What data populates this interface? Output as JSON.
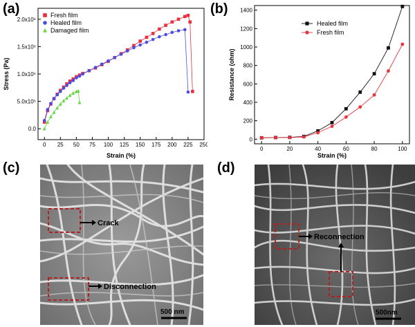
{
  "panels": {
    "a": "(a)",
    "b": "(b)",
    "c": "(c)",
    "d": "(d)"
  },
  "chart_data": [
    {
      "type": "scatter",
      "panel": "(a)",
      "xlabel": "Strain (%)",
      "ylabel": "Stress (Pa)",
      "xlim": [
        -10,
        250
      ],
      "ylim": [
        -0.2,
        2.2
      ],
      "xticks": [
        0,
        25,
        50,
        75,
        100,
        125,
        150,
        175,
        200,
        225,
        250
      ],
      "yticks": [
        0.0,
        0.5,
        1.0,
        1.5,
        2.0
      ],
      "ytick_labels": [
        "0.0",
        "5.0x10⁵",
        "1.0x10⁶",
        "1.5x10⁶",
        "2.0x10⁶"
      ],
      "legend_position": "top-left",
      "series": [
        {
          "name": "Fresh film",
          "color": "#e8313c",
          "marker": "square",
          "points": [
            [
              0,
              0.12
            ],
            [
              5,
              0.33
            ],
            [
              10,
              0.45
            ],
            [
              15,
              0.55
            ],
            [
              20,
              0.63
            ],
            [
              25,
              0.7
            ],
            [
              30,
              0.76
            ],
            [
              35,
              0.82
            ],
            [
              40,
              0.87
            ],
            [
              45,
              0.91
            ],
            [
              50,
              0.95
            ],
            [
              55,
              0.98
            ],
            [
              60,
              1.01
            ],
            [
              70,
              1.06
            ],
            [
              80,
              1.11
            ],
            [
              90,
              1.17
            ],
            [
              100,
              1.23
            ],
            [
              110,
              1.3
            ],
            [
              120,
              1.37
            ],
            [
              130,
              1.44
            ],
            [
              140,
              1.52
            ],
            [
              150,
              1.6
            ],
            [
              160,
              1.67
            ],
            [
              170,
              1.74
            ],
            [
              180,
              1.82
            ],
            [
              190,
              1.89
            ],
            [
              200,
              1.95
            ],
            [
              210,
              2.0
            ],
            [
              220,
              2.05
            ],
            [
              225,
              2.07
            ],
            [
              228,
              1.95
            ],
            [
              232,
              0.68
            ]
          ]
        },
        {
          "name": "Healed film",
          "color": "#4a4de0",
          "marker": "circle",
          "points": [
            [
              0,
              0.15
            ],
            [
              5,
              0.35
            ],
            [
              10,
              0.46
            ],
            [
              15,
              0.55
            ],
            [
              20,
              0.62
            ],
            [
              25,
              0.68
            ],
            [
              30,
              0.74
            ],
            [
              35,
              0.79
            ],
            [
              40,
              0.84
            ],
            [
              45,
              0.88
            ],
            [
              50,
              0.93
            ],
            [
              55,
              0.96
            ],
            [
              60,
              1.0
            ],
            [
              70,
              1.06
            ],
            [
              80,
              1.12
            ],
            [
              90,
              1.18
            ],
            [
              100,
              1.24
            ],
            [
              110,
              1.3
            ],
            [
              120,
              1.36
            ],
            [
              130,
              1.42
            ],
            [
              140,
              1.48
            ],
            [
              150,
              1.53
            ],
            [
              160,
              1.58
            ],
            [
              170,
              1.63
            ],
            [
              180,
              1.68
            ],
            [
              190,
              1.72
            ],
            [
              200,
              1.76
            ],
            [
              210,
              1.79
            ],
            [
              220,
              1.81
            ],
            [
              225,
              0.67
            ]
          ]
        },
        {
          "name": "Damaged film",
          "color": "#5fd93b",
          "marker": "triangle",
          "points": [
            [
              0,
              0.0
            ],
            [
              5,
              0.12
            ],
            [
              10,
              0.22
            ],
            [
              15,
              0.3
            ],
            [
              20,
              0.38
            ],
            [
              25,
              0.45
            ],
            [
              30,
              0.51
            ],
            [
              35,
              0.56
            ],
            [
              40,
              0.61
            ],
            [
              45,
              0.65
            ],
            [
              50,
              0.68
            ],
            [
              53,
              0.69
            ],
            [
              55,
              0.48
            ]
          ]
        }
      ]
    },
    {
      "type": "line",
      "panel": "(b)",
      "xlabel": "Strain (%)",
      "ylabel": "Resistance (ohm)",
      "xlim": [
        -5,
        105
      ],
      "ylim": [
        -50,
        1450
      ],
      "xticks": [
        0,
        20,
        40,
        60,
        80,
        100
      ],
      "yticks": [
        0,
        200,
        400,
        600,
        800,
        1000,
        1200,
        1400
      ],
      "legend_position": "top-left",
      "x": [
        0,
        10,
        20,
        30,
        40,
        50,
        60,
        70,
        80,
        90,
        100
      ],
      "series": [
        {
          "name": "Healed film",
          "color": "#111111",
          "marker": "square",
          "values": [
            15,
            18,
            20,
            30,
            90,
            180,
            330,
            510,
            710,
            990,
            1440
          ]
        },
        {
          "name": "Fresh film",
          "color": "#e8313c",
          "marker": "circle",
          "values": [
            15,
            17,
            18,
            25,
            70,
            140,
            240,
            350,
            480,
            740,
            1030
          ]
        }
      ]
    }
  ],
  "sem_c": {
    "annotations": [
      "Crack",
      "Disconnection"
    ],
    "scale_bar": "500 nm"
  },
  "sem_d": {
    "annotations": [
      "Reconnection"
    ],
    "scale_bar": "500nm"
  }
}
